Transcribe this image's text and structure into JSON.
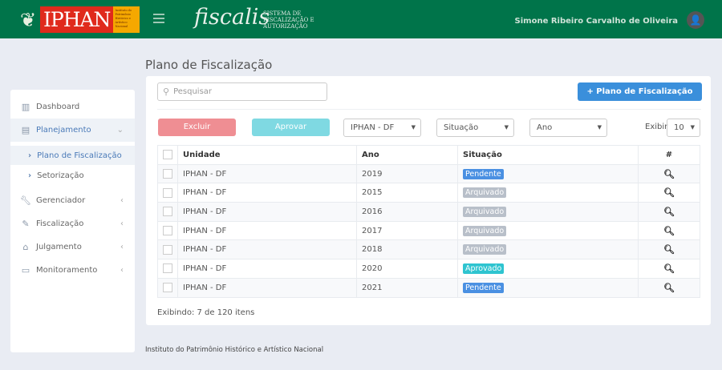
{
  "header": {
    "logo_text": "IPHAN",
    "logo_subtext": "Instituto do Patrimônio Histórico e Artístico Nacional",
    "brand": "fiscalis",
    "system_name": "SISTEMA DE FISCALIZAÇÃO E AUTORIZAÇÃO",
    "user_name": "Simone Ribeiro Carvalho de Oliveira",
    "background": "#00744a"
  },
  "sidebar": {
    "items": [
      {
        "label": "Dashboard",
        "icon": "bar-chart-icon"
      },
      {
        "label": "Planejamento",
        "icon": "book-icon",
        "expanded": true
      },
      {
        "label": "Gerenciador",
        "icon": "wrench-icon"
      },
      {
        "label": "Fiscalização",
        "icon": "edit-icon"
      },
      {
        "label": "Julgamento",
        "icon": "graduation-cap-icon"
      },
      {
        "label": "Monitoramento",
        "icon": "monitor-icon"
      }
    ],
    "subitems": [
      {
        "label": "Plano de Fiscalização",
        "active": true
      },
      {
        "label": "Setorização"
      }
    ]
  },
  "page": {
    "title": "Plano de Fiscalização"
  },
  "toolbar": {
    "search_placeholder": "Pesquisar",
    "add_label": "+ Plano de Fiscalização",
    "delete_label": "Excluir",
    "approve_label": "Aprovar",
    "unit_filter": "IPHAN - DF",
    "status_filter": "Situação",
    "year_filter": "Ano",
    "show_label": "Exibir",
    "page_size": "10"
  },
  "table": {
    "headers": [
      "Unidade",
      "Ano",
      "Situação",
      "#"
    ],
    "rows": [
      {
        "unidade": "IPHAN - DF",
        "ano": "2019",
        "situacao": "Pendente"
      },
      {
        "unidade": "IPHAN - DF",
        "ano": "2015",
        "situacao": "Arquivado"
      },
      {
        "unidade": "IPHAN - DF",
        "ano": "2016",
        "situacao": "Arquivado"
      },
      {
        "unidade": "IPHAN - DF",
        "ano": "2017",
        "situacao": "Arquivado"
      },
      {
        "unidade": "IPHAN - DF",
        "ano": "2018",
        "situacao": "Arquivado"
      },
      {
        "unidade": "IPHAN - DF",
        "ano": "2020",
        "situacao": "Aprovado"
      },
      {
        "unidade": "IPHAN - DF",
        "ano": "2021",
        "situacao": "Pendente"
      }
    ]
  },
  "status_colors": {
    "Pendente": "#4a90e2",
    "Arquivado": "#b8bfc9",
    "Aprovado": "#2ec4d0"
  },
  "summary": "Exibindo: 7 de 120 itens",
  "footer": "Instituto do Patrimônio Histórico e Artístico Nacional"
}
